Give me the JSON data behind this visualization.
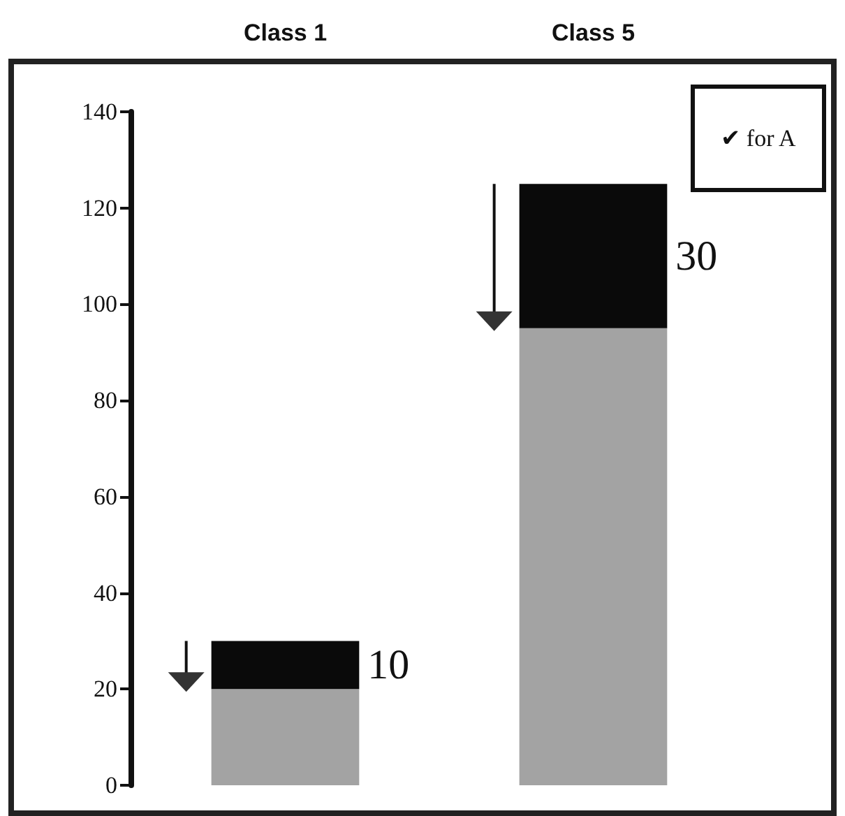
{
  "chart_data": {
    "type": "bar",
    "stacked": true,
    "categories": [
      "Class 1",
      "Class 5"
    ],
    "series": [
      {
        "color": "#a3a3a3",
        "values": [
          20,
          95
        ]
      },
      {
        "color": "#0a0a0a",
        "values": [
          10,
          30
        ],
        "value_labels": [
          "10",
          "30"
        ]
      }
    ],
    "ylim": [
      0,
      140
    ],
    "yticks": [
      0,
      20,
      40,
      60,
      80,
      100,
      120,
      140
    ],
    "grid": false,
    "annotations": [
      "✔ for A"
    ]
  }
}
